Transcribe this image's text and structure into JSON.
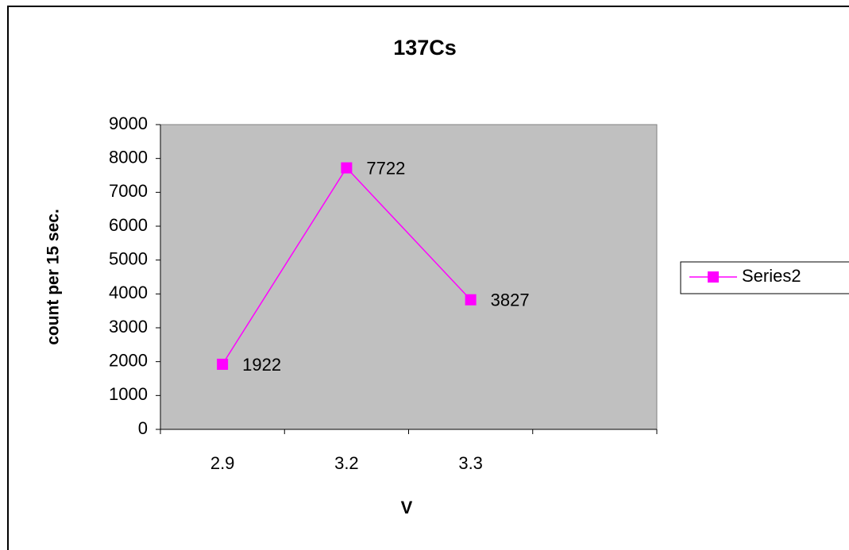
{
  "chart_data": {
    "type": "line",
    "title": "137Cs",
    "x_label": "V",
    "y_label": "count per 15 sec.",
    "categories": [
      "2.9",
      "3.2",
      "3.3",
      null
    ],
    "series": [
      {
        "name": "Series2",
        "color": "#ff00ff",
        "values": [
          1922,
          7722,
          3827,
          null
        ]
      }
    ],
    "ylim": [
      0,
      9000
    ],
    "yticks": [
      0,
      1000,
      2000,
      3000,
      4000,
      5000,
      6000,
      7000,
      8000,
      9000
    ],
    "grid": false,
    "legend": "right",
    "plot_background": "#c0c0c0"
  }
}
